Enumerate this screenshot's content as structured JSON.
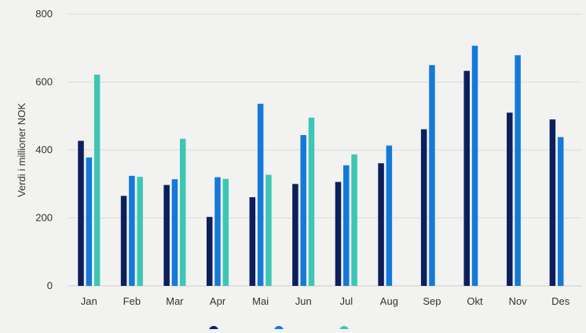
{
  "chart_data": {
    "type": "bar",
    "ylabel": "Verdi i millioner NOK",
    "ylim": [
      0,
      800
    ],
    "yticks": [
      "0",
      "200",
      "400",
      "600",
      "800"
    ],
    "grid": true,
    "legend_position": "bottom",
    "categories": [
      "Jan",
      "Feb",
      "Mar",
      "Apr",
      "Mai",
      "Jun",
      "Jul",
      "Aug",
      "Sep",
      "Okt",
      "Nov",
      "Des"
    ],
    "series": [
      {
        "color": "#0b1f5c",
        "values": [
          427,
          265,
          297,
          203,
          261,
          300,
          306,
          361,
          461,
          633,
          510,
          490
        ]
      },
      {
        "color": "#1479d9",
        "values": [
          378,
          324,
          314,
          320,
          536,
          444,
          355,
          413,
          650,
          707,
          679,
          438
        ]
      },
      {
        "color": "#3ec6b4",
        "values": [
          622,
          321,
          433,
          315,
          327,
          495,
          387,
          null,
          null,
          null,
          null,
          null
        ]
      }
    ]
  }
}
